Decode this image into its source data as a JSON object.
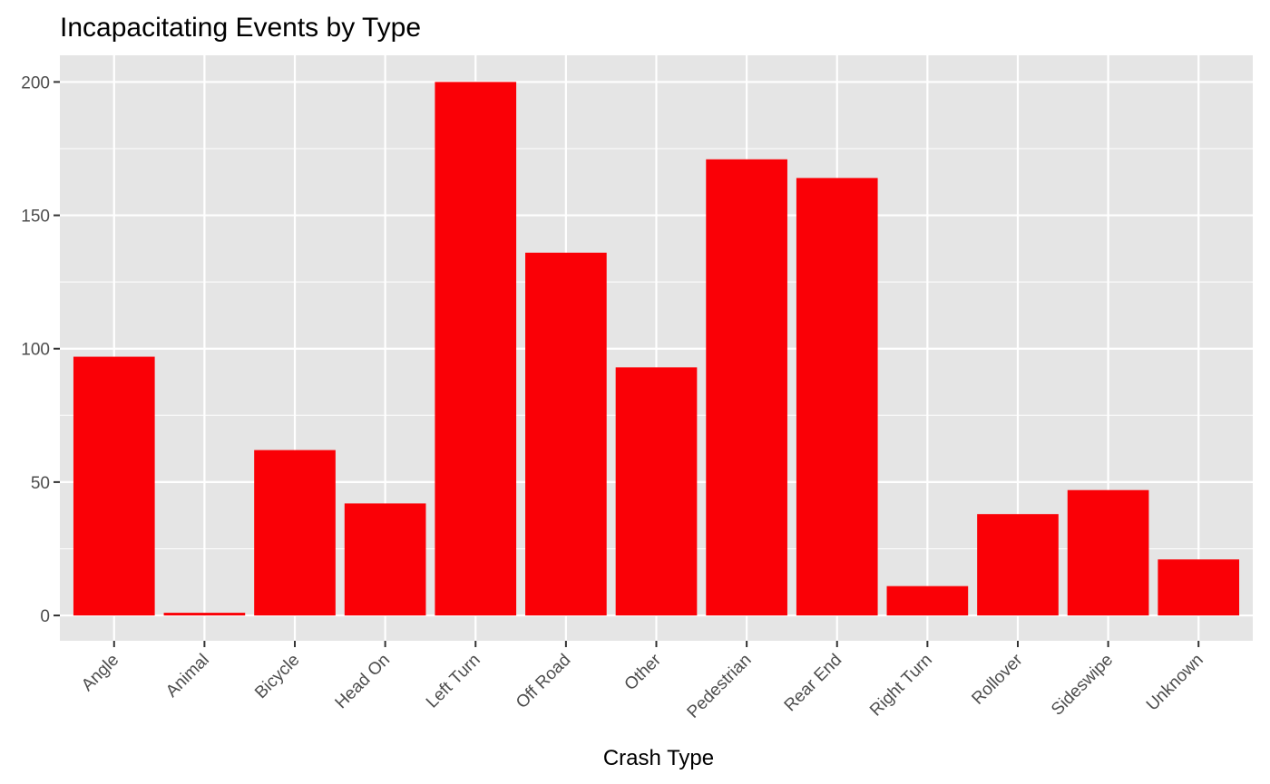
{
  "chart_data": {
    "type": "bar",
    "title": "Incapacitating Events by Type",
    "xlabel": "Crash Type",
    "ylabel": "",
    "categories": [
      "Angle",
      "Animal",
      "Bicycle",
      "Head On",
      "Left Turn",
      "Off Road",
      "Other",
      "Pedestrian",
      "Rear End",
      "Right Turn",
      "Rollover",
      "Sideswipe",
      "Unknown"
    ],
    "values": [
      97,
      1,
      62,
      42,
      200,
      136,
      93,
      171,
      164,
      11,
      38,
      47,
      21
    ],
    "ylim": [
      -9.5,
      210
    ],
    "yticks": [
      0,
      50,
      100,
      150,
      200
    ],
    "ytick_labels": [
      "0",
      "50",
      "100",
      "150",
      "200"
    ],
    "grid": true,
    "bar_color": "#fa0006",
    "panel_color": "#e5e5e5",
    "grid_color": "#ffffff"
  }
}
